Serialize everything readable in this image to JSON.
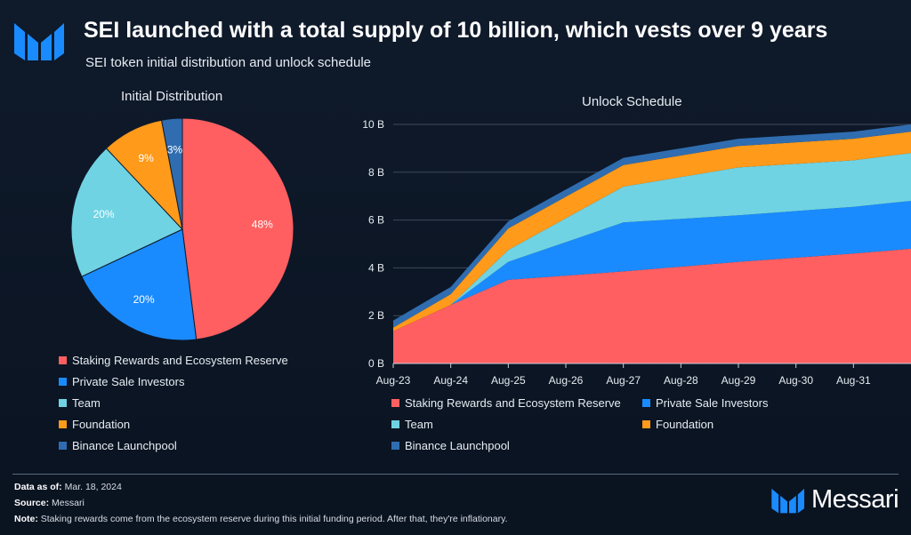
{
  "header": {
    "title": "SEI launched with a total supply of 10 billion, which vests over 9 years",
    "subtitle": "SEI token initial distribution and unlock schedule"
  },
  "colors": {
    "staking": "#ff5f60",
    "private": "#1a8bff",
    "team": "#6fd3e3",
    "foundation": "#ff9a1a",
    "binance": "#2f6db0"
  },
  "chart_data": [
    {
      "type": "pie",
      "title": "Initial Distribution",
      "slices": [
        {
          "label": "Staking Rewards and Ecosystem Reserve",
          "value": 48,
          "display": "48%"
        },
        {
          "label": "Private Sale Investors",
          "value": 20,
          "display": "20%"
        },
        {
          "label": "Team",
          "value": 20,
          "display": "20%"
        },
        {
          "label": "Foundation",
          "value": 9,
          "display": "9%"
        },
        {
          "label": "Binance Launchpool",
          "value": 3,
          "display": "3%"
        }
      ]
    },
    {
      "type": "area",
      "stacked": true,
      "title": "Unlock Schedule",
      "x": [
        2023.6,
        2024.6,
        2025.6,
        2027.6,
        2029.6,
        2031.6,
        2032.6
      ],
      "xtick_labels": [
        "Aug-23",
        "Aug-24",
        "Aug-25",
        "Aug-26",
        "Aug-27",
        "Aug-28",
        "Aug-29",
        "Aug-30",
        "Aug-31"
      ],
      "xtick_values": [
        2023.6,
        2024.6,
        2025.6,
        2026.6,
        2027.6,
        2028.6,
        2029.6,
        2030.6,
        2031.6
      ],
      "xlim": [
        2023.6,
        2032.6
      ],
      "ylim": [
        0,
        10
      ],
      "yticks": [
        0,
        2,
        4,
        6,
        8,
        10
      ],
      "ytick_labels": [
        "0 B",
        "2 B",
        "4 B",
        "6 B",
        "8 B",
        "10 B"
      ],
      "series": [
        {
          "name": "Staking Rewards and Ecosystem Reserve",
          "values": [
            1.35,
            2.45,
            3.5,
            3.85,
            4.25,
            4.6,
            4.8
          ]
        },
        {
          "name": "Private Sale Investors",
          "values": [
            0,
            0,
            0.75,
            2.05,
            1.95,
            1.95,
            2.0
          ]
        },
        {
          "name": "Team",
          "values": [
            0,
            0,
            0.5,
            1.5,
            2.0,
            1.95,
            2.0
          ]
        },
        {
          "name": "Foundation",
          "values": [
            0.15,
            0.45,
            0.9,
            0.9,
            0.9,
            0.9,
            0.9
          ]
        },
        {
          "name": "Binance Launchpool",
          "values": [
            0.3,
            0.3,
            0.3,
            0.3,
            0.3,
            0.3,
            0.3
          ]
        }
      ]
    }
  ],
  "footer": {
    "data_as_of_label": "Data as of:",
    "data_as_of": "Mar. 18, 2024",
    "source_label": "Source:",
    "source": "Messari",
    "note_label": "Note:",
    "note": "Staking rewards come from the ecosystem reserve during this initial funding period. After that, they're inflationary.",
    "brand": "Messari"
  }
}
